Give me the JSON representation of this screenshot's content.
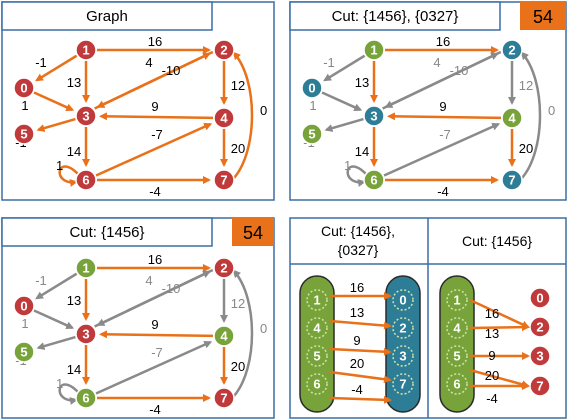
{
  "colors": {
    "red": "#c0393b",
    "green": "#77a33a",
    "blue": "#2e7d96",
    "orange": "#e8711a",
    "gray": "#8a8a8a",
    "border": "#3b6ea5"
  },
  "panels": {
    "graph": {
      "title": "Graph"
    },
    "cut_a": {
      "title": "Cut: {1456}, {0327}",
      "badge": "54"
    },
    "cut_b": {
      "title": "Cut: {1456}",
      "badge": "54"
    },
    "compare": {
      "left_header_line1": "Cut: {1456},",
      "left_header_line2": "{0327}",
      "right_header": "Cut: {1456}"
    }
  },
  "nodes": [
    "1",
    "2",
    "0",
    "3",
    "5",
    "4",
    "6",
    "7"
  ],
  "edge_labels": {
    "w16": "16",
    "w13": "13",
    "w1a": "-1",
    "w1b": "1",
    "w1c": "-1",
    "w1d": "1",
    "w4": "4",
    "w10": "-10",
    "w12": "12",
    "w9": "9",
    "w0": "0",
    "w14": "14",
    "w7": "-7",
    "w20": "20",
    "w4b": "-4"
  },
  "compare": {
    "left_group_a": [
      "1",
      "4",
      "5",
      "6"
    ],
    "left_group_b": [
      "0",
      "2",
      "3",
      "7"
    ],
    "left_weights": [
      "16",
      "13",
      "9",
      "20",
      "-4"
    ],
    "right_group_a": [
      "1",
      "4",
      "5",
      "6"
    ],
    "right_group_b": [
      "0",
      "2",
      "3",
      "7"
    ],
    "right_weights": [
      "16",
      "13",
      "9",
      "20",
      "-4"
    ]
  }
}
